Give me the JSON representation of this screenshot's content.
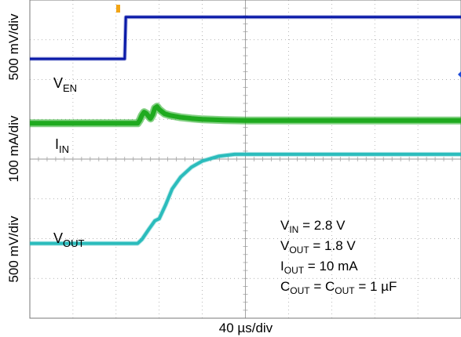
{
  "chart_data": {
    "type": "line",
    "title": "",
    "xlabel": "40 µs/div",
    "x_scale": {
      "divisions": 10,
      "per_div_us": 40
    },
    "y_grid": {
      "divisions": 8
    },
    "grid": true,
    "ylabels": [
      {
        "text": "500 mV/div",
        "channel": "VEN"
      },
      {
        "text": "100 mA/div",
        "channel": "IIN"
      },
      {
        "text": "500 mV/div",
        "channel": "VOUT"
      }
    ],
    "series": [
      {
        "name": "V",
        "sub": "EN",
        "color": "#0a1aa8",
        "unit": "div",
        "x_us": [
          0,
          88,
          89,
          400
        ],
        "y_div": [
          6.52,
          6.52,
          7.57,
          7.57
        ]
      },
      {
        "name": "I",
        "sub": "IN",
        "color": "#1faa1f",
        "unit": "div",
        "x_us": [
          0,
          100,
          102,
          104,
          106,
          108,
          110,
          112,
          114,
          116,
          118,
          120,
          125,
          130,
          140,
          150,
          160,
          180,
          200,
          250,
          300,
          400
        ],
        "y_div": [
          4.9,
          4.9,
          4.98,
          5.1,
          5.18,
          5.15,
          5.08,
          5.02,
          5.12,
          5.28,
          5.32,
          5.25,
          5.14,
          5.1,
          5.05,
          5.02,
          5.0,
          4.98,
          4.97,
          4.97,
          4.97,
          4.97
        ]
      },
      {
        "name": "V",
        "sub": "OUT",
        "color": "#2bbcbc",
        "unit": "div",
        "x_us": [
          0,
          100,
          104,
          110,
          116,
          120,
          126,
          132,
          140,
          150,
          160,
          175,
          190,
          200,
          210,
          400
        ],
        "y_div": [
          1.88,
          1.88,
          1.98,
          2.22,
          2.45,
          2.5,
          2.85,
          3.25,
          3.55,
          3.8,
          3.95,
          4.07,
          4.12,
          4.12,
          4.12,
          4.12
        ]
      }
    ],
    "marker_top_x_us": 82,
    "annotations": [
      {
        "text": "V",
        "sub": "IN",
        "rest": " = 2.8 V"
      },
      {
        "text": "V",
        "sub": "OUT",
        "rest": " = 1.8 V"
      },
      {
        "text": "I",
        "sub": "OUT",
        "rest": " = 10 mA"
      },
      {
        "text": "C",
        "sub": "OUT",
        "rest": " = C",
        "sub2": "OUT",
        "rest2": " = 1 µF"
      }
    ]
  }
}
